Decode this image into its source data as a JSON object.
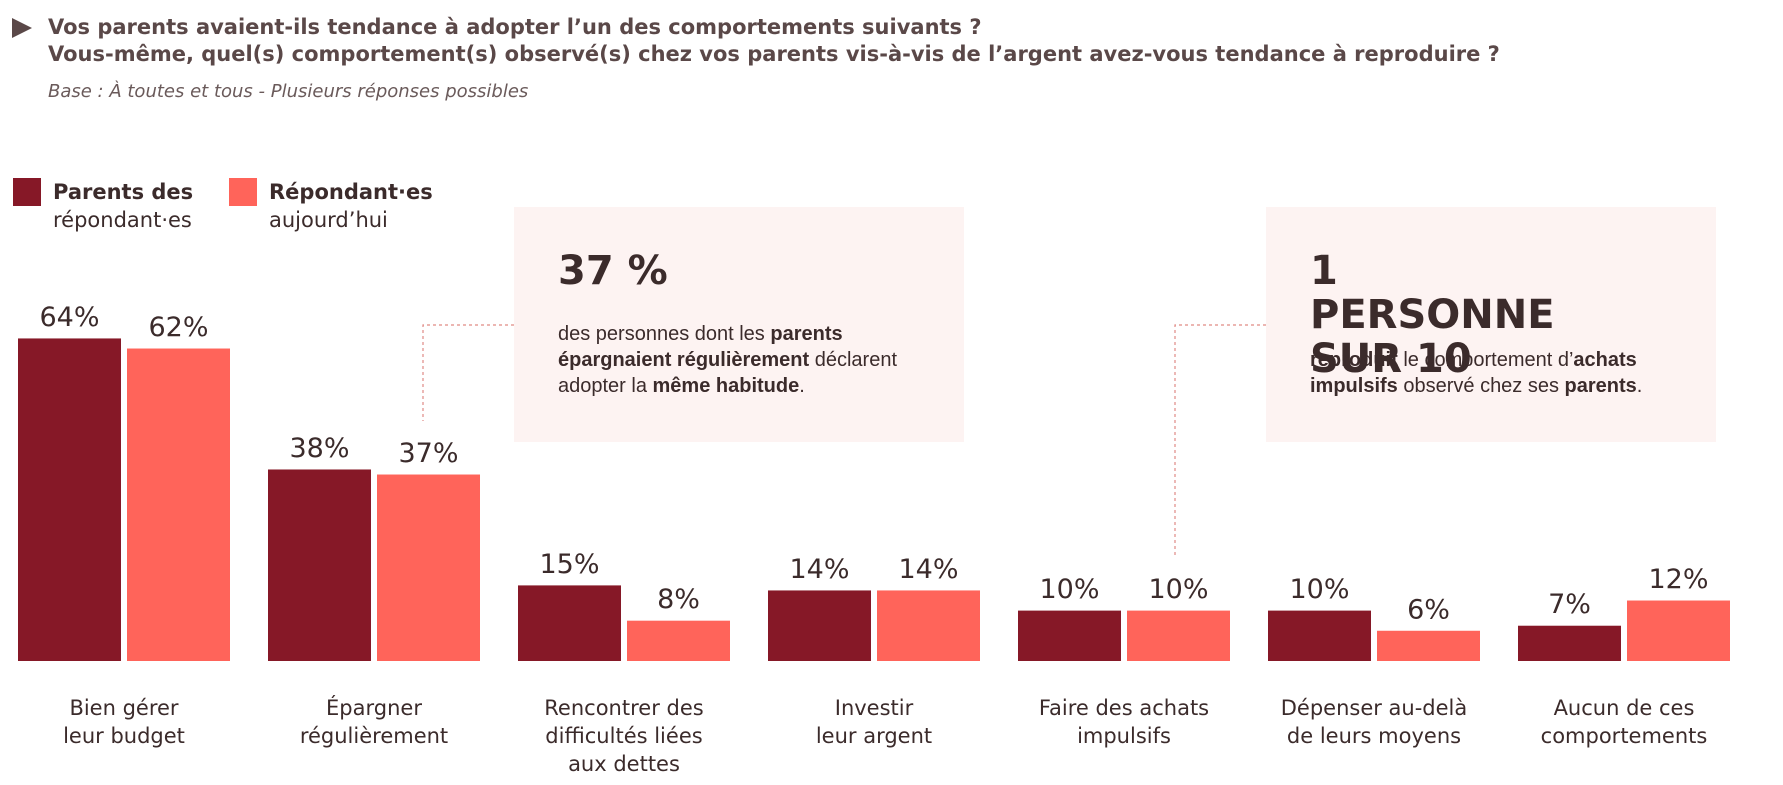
{
  "header": {
    "title_lines": [
      "Vos parents avaient-ils tendance à adopter l’un des comportements suivants ?",
      "Vous-même, quel(s) comportement(s) observé(s) chez vos parents vis-à-vis de l’argent avez-vous tendance à reproduire ?"
    ],
    "subtitle": "Base : À toutes et tous - Plusieurs réponses possibles"
  },
  "chart_data": {
    "type": "bar",
    "categories": [
      [
        "Bien gérer",
        "leur budget"
      ],
      [
        "Épargner",
        "régulièrement"
      ],
      [
        "Rencontrer des",
        "difficultés  liées",
        "aux dettes"
      ],
      [
        "Investir",
        "leur argent"
      ],
      [
        "Faire des achats",
        "impulsifs"
      ],
      [
        "Dépenser au-delà",
        "de leurs moyens"
      ],
      [
        "Aucun de ces",
        "comportements"
      ]
    ],
    "series": [
      {
        "name": "Parents des répondant·es",
        "color": "#861827",
        "values": [
          64,
          38,
          15,
          14,
          10,
          10,
          7
        ],
        "value_labels": [
          "64%",
          "38%",
          "15%",
          "14%",
          "10%",
          "10%",
          "7%"
        ]
      },
      {
        "name": "Répondant·es aujourd’hui",
        "color": "#ff645a",
        "values": [
          62,
          37,
          8,
          14,
          10,
          6,
          12
        ],
        "value_labels": [
          "62%",
          "37%",
          "8%",
          "14%",
          "10%",
          "6%",
          "12%"
        ]
      }
    ],
    "annotations": [
      {
        "headline": "37 %",
        "body": [
          {
            "text": "des personnes dont les "
          },
          {
            "text": "parents épargnaient régulièrement",
            "bold": true
          },
          {
            "text": " déclarent adopter la "
          },
          {
            "text": "même habitude",
            "bold": true
          },
          {
            "text": "."
          }
        ]
      },
      {
        "headline": "1 PERSONNE SUR 10",
        "body": [
          {
            "text": "reproduit",
            "bold": true
          },
          {
            "text": " le comportement d’"
          },
          {
            "text": "achats impulsifs",
            "bold": true
          },
          {
            "text": " observé chez ses "
          },
          {
            "text": "parents",
            "bold": true
          },
          {
            "text": "."
          }
        ]
      }
    ]
  }
}
